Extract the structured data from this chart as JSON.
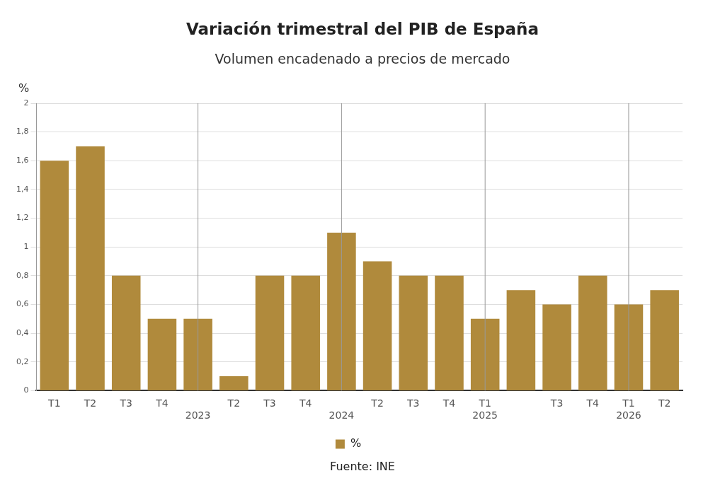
{
  "chart_data": {
    "type": "bar",
    "title": "Variación trimestral del PIB de España",
    "subtitle": "Volumen encadenado a precios de mercado",
    "ylabel": "%",
    "categories": [
      "T1",
      "T2",
      "T3",
      "T4",
      "\n2023",
      "T2",
      "T3",
      "T4",
      "\n2024",
      "T2",
      "T3",
      "T4",
      "T1\n2025",
      null,
      "T3",
      "T4",
      "T1\n2026",
      "T2"
    ],
    "series": [
      {
        "name": "%",
        "color": "#b08a3c",
        "values": [
          1.6,
          1.7,
          0.8,
          0.5,
          0.5,
          0.1,
          0.8,
          0.8,
          1.1,
          0.9,
          0.8,
          0.8,
          0.5,
          0.7,
          0.6,
          0.8,
          0.6,
          0.7
        ]
      }
    ],
    "ylim": [
      0,
      2
    ],
    "yticks": [
      0,
      {
        "value": 0.2,
        "label": "0,2"
      },
      {
        "value": 0.4,
        "label": "0,4"
      },
      {
        "value": 0.6,
        "label": "0,6"
      },
      {
        "value": 0.8,
        "label": "0,8"
      },
      1,
      {
        "value": 1.2,
        "label": "1,2"
      },
      {
        "value": 1.4,
        "label": "1,4"
      },
      {
        "value": 1.6,
        "label": "1,6"
      },
      {
        "value": 1.8,
        "label": "1,8"
      },
      2
    ],
    "ref_lines": [
      {
        "axis": "x",
        "value": "\n2023",
        "color": "#999999"
      },
      {
        "axis": "x",
        "value": "\n2024",
        "color": "#999999"
      },
      {
        "axis": "x",
        "value": "T1\n2025",
        "color": "#999999"
      },
      {
        "axis": "x",
        "value": "T1\n2026",
        "color": "#999999"
      }
    ],
    "grid": "y",
    "legend": "bottom",
    "annotations": [
      "Fuente: INE"
    ]
  }
}
